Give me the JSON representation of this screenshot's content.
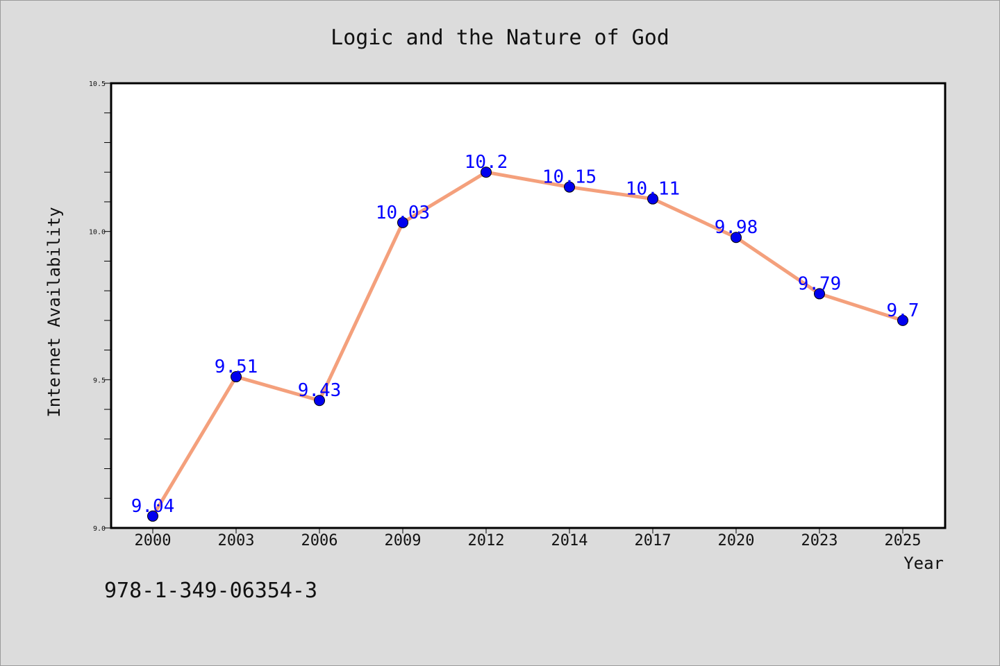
{
  "chart_data": {
    "type": "line",
    "title": "Logic and the Nature of God",
    "xlabel": "Year",
    "ylabel": "Internet Availability",
    "categories": [
      "2000",
      "2003",
      "2006",
      "2009",
      "2012",
      "2014",
      "2017",
      "2020",
      "2023",
      "2025"
    ],
    "series": [
      {
        "name": "",
        "values": [
          9.04,
          9.51,
          9.43,
          10.03,
          10.2,
          10.15,
          10.11,
          9.98,
          9.79,
          9.7
        ],
        "labels": [
          "9.04",
          "9.51",
          "9.43",
          "10.03",
          "10.2",
          "10.15",
          "10.11",
          "9.98",
          "9.79",
          "9.7"
        ],
        "line_color": "#f4a07c",
        "marker_color": "#0000ee",
        "label_color": "#0000ff"
      }
    ],
    "ylim": [
      9.0,
      10.5
    ],
    "yticks": [
      "9.0",
      "9.5",
      "10.0",
      "10.5"
    ],
    "grid": false,
    "background": "#dcdcdc",
    "plot_background": "#ffffff"
  },
  "footer": {
    "isbn": "978-1-349-06354-3"
  }
}
